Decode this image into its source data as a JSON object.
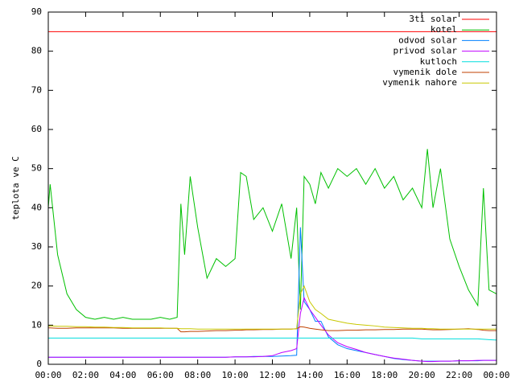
{
  "chart_data": {
    "type": "line",
    "ylabel": "teplota ve C",
    "x": [
      0,
      0.1,
      0.5,
      1,
      1.5,
      2,
      2.5,
      3,
      3.5,
      4,
      4.5,
      5,
      5.5,
      6,
      6.5,
      6.9,
      7.1,
      7.3,
      7.6,
      8,
      8.5,
      9,
      9.5,
      10,
      10.3,
      10.6,
      11,
      11.5,
      12,
      12.5,
      13,
      13.3,
      13.5,
      13.7,
      14,
      14.3,
      14.6,
      15,
      15.5,
      16,
      16.5,
      17,
      17.5,
      18,
      18.5,
      19,
      19.5,
      20,
      20.3,
      20.6,
      21,
      21.5,
      22,
      22.5,
      23,
      23.3,
      23.6,
      24
    ],
    "xlim": [
      0,
      24
    ],
    "xticks": [
      {
        "value": 0,
        "label": "00:00"
      },
      {
        "value": 2,
        "label": "02:00"
      },
      {
        "value": 4,
        "label": "04:00"
      },
      {
        "value": 6,
        "label": "06:00"
      },
      {
        "value": 8,
        "label": "08:00"
      },
      {
        "value": 10,
        "label": "10:00"
      },
      {
        "value": 12,
        "label": "12:00"
      },
      {
        "value": 14,
        "label": "14:00"
      },
      {
        "value": 16,
        "label": "16:00"
      },
      {
        "value": 18,
        "label": "18:00"
      },
      {
        "value": 20,
        "label": "20:00"
      },
      {
        "value": 22,
        "label": "22:00"
      },
      {
        "value": 24,
        "label": "00:00"
      }
    ],
    "ylim": [
      0,
      90
    ],
    "yticks": [
      0,
      10,
      20,
      30,
      40,
      50,
      60,
      70,
      80,
      90
    ],
    "legend": "top-right",
    "series": [
      {
        "name": "3ti solar",
        "color": "#ff0000",
        "values": [
          85,
          85,
          85,
          85,
          85,
          85,
          85,
          85,
          85,
          85,
          85,
          85,
          85,
          85,
          85,
          85,
          85,
          85,
          85,
          85,
          85,
          85,
          85,
          85,
          85,
          85,
          85,
          85,
          85,
          85,
          85,
          85,
          85,
          85,
          85,
          85,
          85,
          85,
          85,
          85,
          85,
          85,
          85,
          85,
          85,
          85,
          85,
          85,
          85,
          85,
          85,
          85,
          85,
          85,
          85,
          85,
          85,
          85
        ]
      },
      {
        "name": "kotel",
        "color": "#00c000",
        "values": [
          40,
          46,
          28,
          18,
          14,
          12,
          11.5,
          12,
          11.5,
          12,
          11.5,
          11.5,
          11.5,
          12,
          11.5,
          12,
          41,
          28,
          48,
          35,
          22,
          27,
          25,
          27,
          49,
          48,
          37,
          40,
          34,
          41,
          27,
          40,
          14,
          48,
          46,
          41,
          49,
          45,
          50,
          48,
          50,
          46,
          50,
          45,
          48,
          42,
          45,
          40,
          55,
          40,
          50,
          32,
          25,
          19,
          15,
          45,
          19,
          18
        ]
      },
      {
        "name": "odvod solar",
        "color": "#0080ff",
        "values": [
          1.8,
          1.8,
          1.8,
          1.8,
          1.8,
          1.8,
          1.8,
          1.8,
          1.8,
          1.8,
          1.8,
          1.8,
          1.8,
          1.8,
          1.8,
          1.8,
          1.8,
          1.8,
          1.8,
          1.8,
          1.8,
          1.8,
          1.8,
          1.9,
          1.9,
          1.9,
          2,
          2,
          2,
          2.1,
          2.2,
          2.3,
          35,
          16,
          14,
          11,
          11,
          7,
          5,
          4,
          3.5,
          3,
          2.5,
          2,
          1.5,
          1.2,
          1,
          0.8,
          0.8,
          0.8,
          0.8,
          0.8,
          0.9,
          0.9,
          0.9,
          1,
          1,
          1
        ]
      },
      {
        "name": "privod solar",
        "color": "#c000ff",
        "values": [
          1.8,
          1.8,
          1.8,
          1.8,
          1.8,
          1.8,
          1.8,
          1.8,
          1.8,
          1.8,
          1.8,
          1.8,
          1.8,
          1.8,
          1.8,
          1.8,
          1.8,
          1.8,
          1.8,
          1.8,
          1.8,
          1.8,
          1.8,
          1.9,
          1.9,
          1.9,
          1.9,
          2,
          2.2,
          3,
          3.5,
          4,
          13,
          17,
          14,
          12,
          10,
          7.5,
          5.5,
          4.5,
          3.8,
          3,
          2.5,
          2,
          1.6,
          1.3,
          1,
          0.8,
          0.7,
          0.7,
          0.8,
          0.8,
          0.9,
          0.9,
          1,
          1,
          1,
          1
        ]
      },
      {
        "name": "kutloch",
        "color": "#00dddd",
        "values": [
          6.7,
          6.7,
          6.7,
          6.7,
          6.7,
          6.7,
          6.7,
          6.7,
          6.7,
          6.7,
          6.7,
          6.7,
          6.7,
          6.7,
          6.7,
          6.7,
          6.7,
          6.7,
          6.7,
          6.7,
          6.7,
          6.7,
          6.7,
          6.7,
          6.7,
          6.7,
          6.7,
          6.7,
          6.7,
          6.7,
          6.7,
          6.7,
          6.7,
          6.7,
          6.7,
          6.7,
          6.7,
          6.7,
          6.7,
          6.7,
          6.7,
          6.7,
          6.7,
          6.7,
          6.7,
          6.7,
          6.7,
          6.5,
          6.5,
          6.5,
          6.5,
          6.5,
          6.5,
          6.5,
          6.5,
          6.4,
          6.3,
          6.2
        ]
      },
      {
        "name": "vymenik dole",
        "color": "#c04000",
        "values": [
          9.3,
          9.3,
          9.2,
          9.2,
          9.3,
          9.3,
          9.3,
          9.3,
          9.3,
          9.2,
          9.2,
          9.2,
          9.2,
          9.2,
          9.2,
          9.2,
          8.3,
          8.3,
          8.4,
          8.4,
          8.5,
          8.6,
          8.6,
          8.7,
          8.7,
          8.8,
          8.8,
          8.9,
          8.9,
          9,
          9,
          9.1,
          9.6,
          9.5,
          9.2,
          9,
          8.8,
          8.6,
          8.6,
          8.7,
          8.7,
          8.8,
          8.8,
          8.9,
          8.9,
          9,
          9,
          9,
          8.9,
          8.8,
          8.8,
          8.9,
          9,
          9.1,
          8.9,
          8.7,
          8.6,
          8.6
        ]
      },
      {
        "name": "vymenik nahore",
        "color": "#c8c800",
        "values": [
          9.7,
          9.8,
          9.7,
          9.7,
          9.6,
          9.6,
          9.5,
          9.5,
          9.4,
          9.4,
          9.3,
          9.3,
          9.3,
          9.3,
          9.2,
          9.2,
          9.1,
          9.1,
          9.1,
          9,
          9,
          9,
          9,
          9,
          9,
          9,
          9,
          9,
          9,
          9,
          9,
          9.1,
          18,
          20,
          16,
          14,
          13,
          11.5,
          11,
          10.5,
          10.2,
          10,
          9.8,
          9.5,
          9.4,
          9.3,
          9.2,
          9.2,
          9.1,
          9.1,
          9,
          9,
          9,
          9,
          9,
          9,
          9,
          9
        ]
      }
    ]
  }
}
